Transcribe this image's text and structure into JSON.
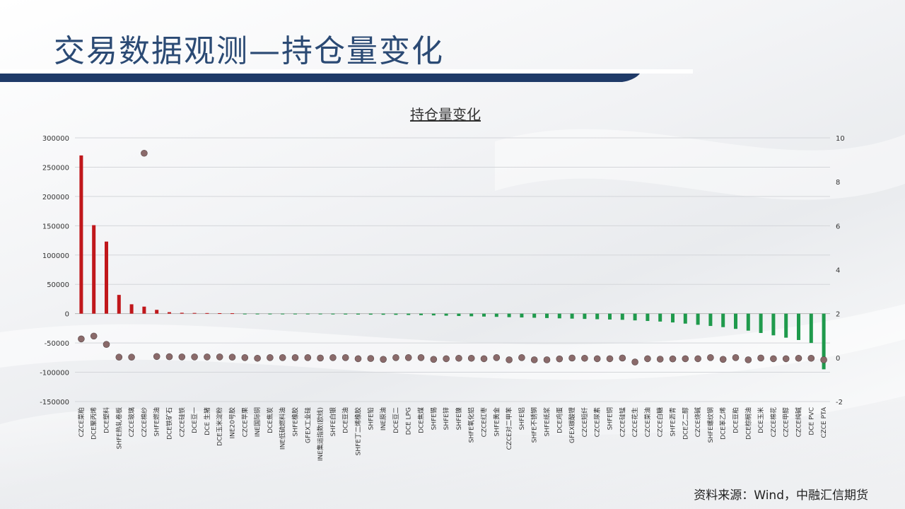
{
  "page": {
    "title": "交易数据观测—持仓量变化",
    "source": "资料来源：Wind，中融汇信期货"
  },
  "colors": {
    "positive": "#c0171b",
    "negative": "#1f9a4c",
    "marker": "#8a6a6a",
    "header_bar": "#1f3a68"
  },
  "chart_data": {
    "type": "bar",
    "title": "持仓量变化",
    "xlabel": "",
    "ylabel": "",
    "ylim": [
      -150000,
      300000
    ],
    "y_ticks": [
      300000,
      250000,
      200000,
      150000,
      100000,
      50000,
      0,
      -50000,
      -100000,
      -150000
    ],
    "y2lim": [
      -2,
      10
    ],
    "y2_ticks": [
      10,
      8,
      6,
      4,
      2,
      0,
      -2
    ],
    "grid": true,
    "categories": [
      "CZCE菜粕",
      "DCE聚丙烯",
      "DCE塑料",
      "SHFE热轧卷板",
      "CZCE玻璃",
      "CZCE棉纱",
      "SHFE燃油",
      "DCE铁矿石",
      "CZCE硅铁",
      "DCE豆一",
      "DCE 生猪",
      "DCE玉米淀粉",
      "INE20号胶",
      "CZCE苹果",
      "INE国际铜",
      "DCE焦炭",
      "INE低硫燃料油",
      "SHFE橡胶",
      "GFEX工业硅",
      "INE集运指数(欧线)",
      "SHFE白银",
      "DCE豆油",
      "SHFE丁二烯橡胶",
      "SHFE铅",
      "INE原油",
      "DCE豆二",
      "DCE LPG",
      "DCE焦煤",
      "SHFE锡",
      "SHFE锌",
      "SHFE镍",
      "SHFE氧化铝",
      "CZCE红枣",
      "SHFE黄金",
      "CZCE对二甲苯",
      "SHFE铝",
      "SHFE不锈钢",
      "SHFE纸浆",
      "DCE鸡蛋",
      "GFEX碳酸锂",
      "CZCE短纤",
      "CZCE尿素",
      "SHFE铜",
      "CZCE硅锰",
      "CZCE花生",
      "CZCE菜油",
      "CZCE白糖",
      "SHFE沥青",
      "DCE乙二醇",
      "CZCE烧碱",
      "SHFE螺纹钢",
      "DCE苯乙烯",
      "DCE豆粕",
      "DCE棕榈油",
      "DCE玉米",
      "CZCE棉花",
      "CZCE甲醇",
      "CZCE纯碱",
      "DCE PVC",
      "CZCE PTA"
    ],
    "series": [
      {
        "axis": "left",
        "values": [
          270000,
          151000,
          123000,
          32000,
          16000,
          12000,
          6500,
          2500,
          1500,
          1200,
          1000,
          800,
          700,
          -300,
          -500,
          -700,
          -800,
          -1000,
          -1100,
          -1200,
          -1300,
          -1400,
          -1500,
          -1700,
          -1900,
          -2000,
          -2300,
          -2600,
          -3000,
          -3500,
          -4000,
          -4500,
          -5000,
          -5500,
          -6000,
          -6500,
          -7000,
          -7500,
          -8000,
          -8500,
          -9000,
          -9500,
          -10000,
          -10500,
          -11500,
          -12500,
          -13500,
          -15000,
          -17000,
          -19000,
          -21000,
          -23000,
          -26000,
          -29000,
          -33000,
          -37000,
          -41000,
          -45000,
          -50000,
          -95000
        ]
      },
      {
        "axis": "right",
        "values": [
          0.85,
          0.98,
          0.6,
          0.02,
          0.02,
          9.3,
          0.05,
          0.04,
          0.03,
          0.03,
          0.03,
          0.03,
          0.02,
          0.0,
          -0.03,
          0.0,
          0.0,
          0.0,
          0.0,
          -0.02,
          0.0,
          0.0,
          -0.05,
          -0.04,
          -0.08,
          0.0,
          0.0,
          0.0,
          -0.08,
          -0.05,
          -0.03,
          -0.03,
          -0.05,
          0.0,
          -0.1,
          0.0,
          -0.1,
          -0.1,
          -0.06,
          -0.02,
          -0.03,
          -0.05,
          -0.05,
          -0.02,
          -0.2,
          -0.05,
          -0.07,
          -0.06,
          -0.05,
          -0.05,
          0.0,
          -0.08,
          0.0,
          -0.1,
          -0.02,
          -0.05,
          -0.05,
          -0.03,
          -0.03,
          -0.1
        ]
      }
    ]
  }
}
